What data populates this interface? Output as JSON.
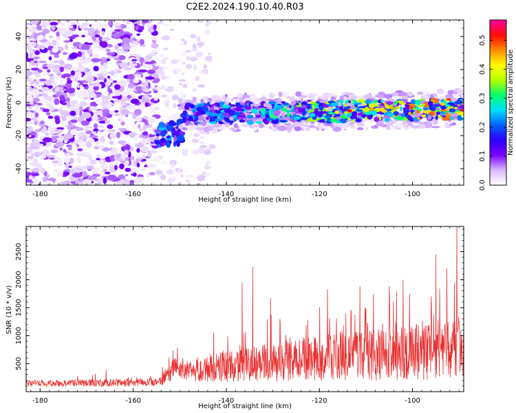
{
  "title": "C2E2.2024.190.10.40.R03",
  "chart_data": [
    {
      "type": "heatmap",
      "xlabel": "Height of straight line (km)",
      "ylabel": "Frequency (Hz)",
      "xlim": [
        -183,
        -89
      ],
      "ylim": [
        -50,
        50
      ],
      "x_ticks": [
        -180,
        -160,
        -140,
        -120,
        -100
      ],
      "y_ticks": [
        -40,
        -20,
        0,
        20,
        40
      ],
      "colorbar": {
        "label": "Normalized spectral amplitude",
        "range": [
          0,
          0.57
        ],
        "ticks": [
          0.0,
          0.1,
          0.2,
          0.3,
          0.4,
          0.5
        ],
        "colors": [
          "#ffffff",
          "#d8b8ff",
          "#7a00ff",
          "#2a00ff",
          "#0060ff",
          "#00e0ff",
          "#00ff70",
          "#b0ff00",
          "#ffff00",
          "#ff9000",
          "#ff1000",
          "#ff0090"
        ]
      },
      "features": [
        {
          "x_range": [
            -183,
            -155
          ],
          "freq_band": [
            -50,
            50
          ],
          "amplitude": "0.05-0.12",
          "pattern": "broadband noise"
        },
        {
          "x_range": [
            -155,
            -150
          ],
          "freq_band": [
            -22,
            -15
          ],
          "amplitude": "0.15-0.25",
          "pattern": "onset cluster"
        },
        {
          "x_range": [
            -150,
            -89
          ],
          "freq_band": [
            -10,
            4
          ],
          "amplitude": "0.1-0.57",
          "pattern": "narrow band near 0 Hz"
        }
      ]
    },
    {
      "type": "line",
      "xlabel": "Height of straight line (km)",
      "ylabel": "SNR (10 * v/v)",
      "xlim": [
        -183,
        -89
      ],
      "ylim": [
        0,
        2950
      ],
      "x_ticks": [
        -180,
        -160,
        -140,
        -120,
        -100
      ],
      "y_ticks": [
        500,
        1000,
        1500,
        2000,
        2500
      ],
      "series": [
        {
          "color": "#e83030",
          "x": [
            -183,
            -175,
            -167,
            -160,
            -155,
            -152,
            -151,
            -148,
            -145,
            -142,
            -140,
            -138,
            -136,
            -134,
            -132,
            -130,
            -128,
            -126,
            -124,
            -122,
            -120,
            -118,
            -116,
            -114,
            -112,
            -110,
            -108,
            -106,
            -104,
            -102,
            -100,
            -98,
            -96,
            -94,
            -92,
            -91,
            -90,
            -89
          ],
          "baseline": [
            150,
            150,
            155,
            160,
            175,
            300,
            480,
            360,
            390,
            430,
            440,
            460,
            480,
            500,
            520,
            520,
            540,
            560,
            580,
            570,
            590,
            610,
            610,
            620,
            640,
            640,
            660,
            670,
            680,
            690,
            700,
            710,
            720,
            730,
            760,
            780,
            790,
            790
          ],
          "amplitude": [
            90,
            100,
            110,
            110,
            120,
            280,
            320,
            320,
            370,
            420,
            450,
            480,
            500,
            530,
            560,
            580,
            600,
            620,
            650,
            660,
            680,
            700,
            700,
            720,
            740,
            760,
            780,
            790,
            800,
            820,
            830,
            850,
            860,
            880,
            900,
            920,
            950,
            950
          ],
          "peaks": [
            [
              -165.8,
              390
            ],
            [
              -150.5,
              790
            ],
            [
              -136.6,
              1950
            ],
            [
              -134.3,
              2230
            ],
            [
              -130.5,
              1670
            ],
            [
              -118.3,
              1830
            ],
            [
              -114.3,
              1400
            ],
            [
              -113.2,
              1450
            ],
            [
              -111.3,
              1880
            ],
            [
              -110.0,
              1490
            ],
            [
              -108.4,
              1740
            ],
            [
              -105.0,
              1880
            ],
            [
              -100.6,
              1740
            ],
            [
              -96.0,
              1700
            ],
            [
              -95.0,
              2450
            ],
            [
              -92.6,
              2200
            ],
            [
              -91.0,
              1950
            ],
            [
              -90.5,
              2950
            ],
            [
              -89.6,
              1100
            ]
          ]
        }
      ]
    }
  ]
}
